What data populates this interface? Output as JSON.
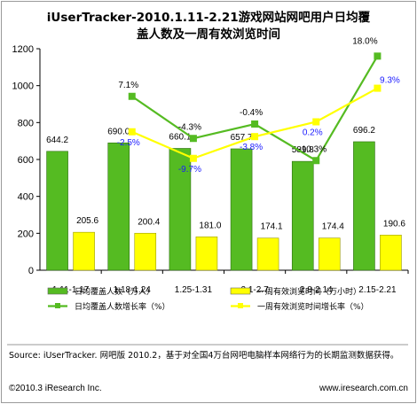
{
  "chart_data": {
    "type": "bar",
    "title_line1": "iUserTracker-2010.1.11-2.21游戏网站网吧用户日均覆",
    "title_line2": "盖人数及一周有效浏览时间",
    "categories": [
      "1.11-1.17",
      "1.18-1.24",
      "1.25-1.31",
      "2.1-2.7",
      "2.8-2.14",
      "2.15-2.21"
    ],
    "ylim": [
      0,
      1200
    ],
    "yticks": [
      "0",
      "200",
      "400",
      "600",
      "800",
      "1000",
      "1200"
    ],
    "series": [
      {
        "name": "日均覆盖人数（万人）",
        "kind": "bar",
        "color": "#55bb22",
        "values": [
          644.2,
          690.0,
          660.1,
          657.7,
          589.8,
          696.2
        ],
        "labels": [
          "644.2",
          "690.0",
          "660.1",
          "657.7",
          "589.8",
          "696.2"
        ]
      },
      {
        "name": "一周有效浏览时间（万小时）",
        "kind": "bar",
        "color": "#ffff00",
        "values": [
          205.6,
          200.4,
          181.0,
          174.1,
          174.4,
          190.6
        ],
        "labels": [
          "205.6",
          "200.4",
          "181.0",
          "174.1",
          "174.4",
          "190.6"
        ]
      },
      {
        "name": "日均覆盖人数增长率（%）",
        "kind": "line",
        "color": "#55bb22",
        "values": [
          null,
          7.1,
          -4.3,
          -0.4,
          -10.3,
          18.0
        ],
        "labels": [
          "",
          "7.1%",
          "-4.3%",
          "-0.4%",
          "-10.3%",
          "18.0%"
        ]
      },
      {
        "name": "一周有效浏览时间增长率（%）",
        "kind": "line",
        "color": "#ffff00",
        "values": [
          null,
          -2.5,
          -9.7,
          -3.8,
          0.2,
          9.3
        ],
        "labels": [
          "",
          "-2.5%",
          "-9.7%",
          "-3.8%",
          "0.2%",
          "9.3%"
        ]
      }
    ],
    "legend_position": "bottom"
  },
  "source_text": "Source: iUserTracker. 网吧版 2010.2，基于对全国4万台网吧电脑样本网络行为的长期监测数据获得。",
  "copyright": "©2010.3  iResearch Inc.",
  "website": "www.iresearch.com.cn"
}
